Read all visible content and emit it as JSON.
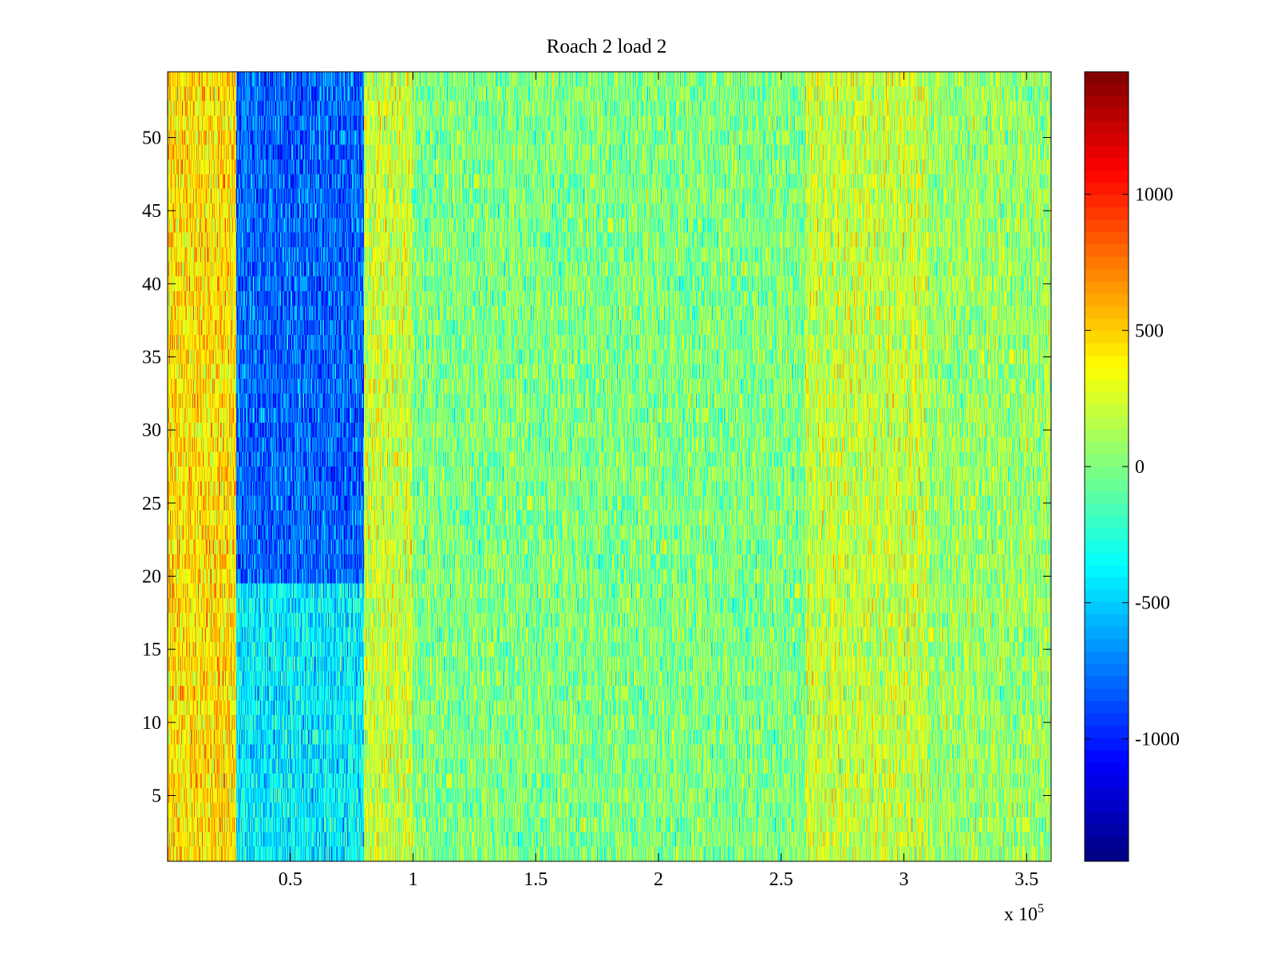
{
  "chart_data": {
    "type": "heatmap",
    "title": "Roach 2 load 2",
    "xlabel": "",
    "ylabel": "",
    "x_exponent_label": "x 10",
    "x_exponent_power": "5",
    "xlim": [
      0,
      3.6
    ],
    "ylim": [
      0.5,
      54.5
    ],
    "x_ticks": [
      0.5,
      1,
      1.5,
      2,
      2.5,
      3,
      3.5
    ],
    "x_tick_labels": [
      "0.5",
      "1",
      "1.5",
      "2",
      "2.5",
      "3",
      "3.5"
    ],
    "y_ticks": [
      5,
      10,
      15,
      20,
      25,
      30,
      35,
      40,
      45,
      50
    ],
    "y_tick_labels": [
      "5",
      "10",
      "15",
      "20",
      "25",
      "30",
      "35",
      "40",
      "45",
      "50"
    ],
    "rows": 54,
    "colormap": "jet",
    "clim": [
      -1450,
      1450
    ],
    "colorbar_ticks": [
      -1000,
      -500,
      0,
      500,
      1000
    ],
    "colorbar_tick_labels": [
      "-1000",
      "-500",
      "0",
      "500",
      "1000"
    ],
    "regions": [
      {
        "x_range": [
          0,
          0.28
        ],
        "y_range": [
          0.5,
          54.5
        ],
        "mean_value": 450,
        "note": "warm band"
      },
      {
        "x_range": [
          0.28,
          0.8
        ],
        "y_range": [
          20,
          54.5
        ],
        "mean_value": -800
      },
      {
        "x_range": [
          0.28,
          0.8
        ],
        "y_range": [
          0.5,
          20
        ],
        "mean_value": -400
      },
      {
        "x_range": [
          0.8,
          1.0
        ],
        "y_range": [
          0.5,
          54.5
        ],
        "mean_value": 220
      },
      {
        "x_range": [
          1.0,
          2.6
        ],
        "y_range": [
          0.5,
          54.5
        ],
        "mean_value": 0
      },
      {
        "x_range": [
          2.6,
          3.1
        ],
        "y_range": [
          0.5,
          54.5
        ],
        "mean_value": 200
      },
      {
        "x_range": [
          3.1,
          3.6
        ],
        "y_range": [
          0.5,
          54.5
        ],
        "mean_value": 80
      }
    ],
    "noise_amplitude": 300
  }
}
